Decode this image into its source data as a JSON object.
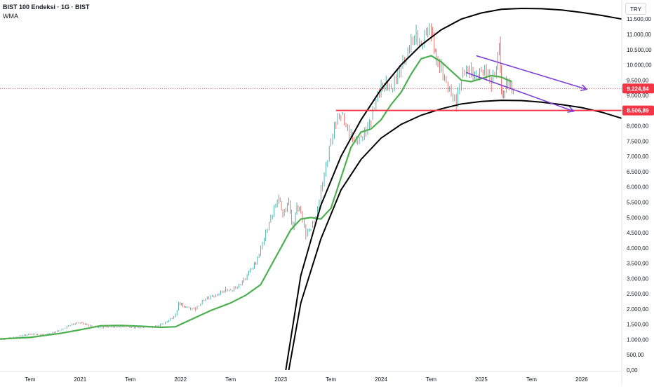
{
  "header": {
    "title": "BIST 100 Endeksi · 1G · BIST",
    "indicator": "WMA",
    "currency": "TRY"
  },
  "colors": {
    "price_up": "#26a69a",
    "price_down": "#ef5350",
    "wma": "#4caf50",
    "arc": "#000000",
    "support_line": "#f23645",
    "channel": "#7b3fd6",
    "last_price_label": "#f23645",
    "grid_label": "#131722"
  },
  "chart_data": {
    "type": "line",
    "title": "BIST 100 Endeksi · 1G · BIST",
    "xlabel": "",
    "ylabel": "",
    "x_ticks": [
      "Tem",
      "2021",
      "Tem",
      "2022",
      "Tem",
      "2023",
      "Tem",
      "2024",
      "Tem",
      "2025",
      "Tem",
      "2026"
    ],
    "x_tick_years": [
      2020.5,
      2021.0,
      2021.5,
      2022.0,
      2022.5,
      2023.0,
      2023.5,
      2024.0,
      2024.5,
      2025.0,
      2025.5,
      2026.0
    ],
    "y_ticks": [
      "11.500,00",
      "11.000,00",
      "10.500,00",
      "10.000,00",
      "9.500,00",
      "9.000,00",
      "8.000,00",
      "7.500,00",
      "7.000,00",
      "6.500,00",
      "6.000,00",
      "5.500,00",
      "5.000,00",
      "4.500,00",
      "4.000,00",
      "3.500,00",
      "3.000,00",
      "2.500,00",
      "2.000,00",
      "1.500,00",
      "1.000,00",
      "500,00",
      "0,00"
    ],
    "y_tick_values": [
      11500,
      11000,
      10500,
      10000,
      9500,
      9000,
      8000,
      7500,
      7000,
      6500,
      6000,
      5500,
      5000,
      4500,
      4000,
      3500,
      3000,
      2500,
      2000,
      1500,
      1000,
      500,
      0
    ],
    "ylim": [
      0,
      11850
    ],
    "xlim": [
      2020.2,
      2026.4
    ],
    "last_price_label": "9.224,84",
    "last_price_value": 9224.84,
    "support_label": "8.506,89",
    "support_value": 8506.89,
    "series": [
      {
        "role": "price",
        "x": [
          2020.2,
          2020.35,
          2020.5,
          2020.65,
          2020.8,
          2020.9,
          2021.0,
          2021.1,
          2021.2,
          2021.3,
          2021.45,
          2021.6,
          2021.75,
          2021.85,
          2021.95,
          2021.98,
          2022.05,
          2022.15,
          2022.25,
          2022.35,
          2022.45,
          2022.5,
          2022.6,
          2022.68,
          2022.75,
          2022.8,
          2022.85,
          2022.9,
          2022.95,
          2022.98,
          2023.02,
          2023.08,
          2023.12,
          2023.16,
          2023.2,
          2023.25,
          2023.3,
          2023.35,
          2023.4,
          2023.45,
          2023.5,
          2023.55,
          2023.6,
          2023.65,
          2023.7,
          2023.75,
          2023.8,
          2023.85,
          2023.9,
          2023.95,
          2024.0,
          2024.05,
          2024.1,
          2024.15,
          2024.2,
          2024.25,
          2024.3,
          2024.35,
          2024.4,
          2024.45,
          2024.5,
          2024.53,
          2024.55,
          2024.6,
          2024.65,
          2024.7,
          2024.75,
          2024.8,
          2024.85,
          2024.9,
          2024.95,
          2025.0,
          2025.05,
          2025.1,
          2025.15,
          2025.18,
          2025.2,
          2025.22,
          2025.25,
          2025.28,
          2025.32
        ],
        "values": [
          1000,
          1080,
          1180,
          1150,
          1300,
          1480,
          1560,
          1450,
          1400,
          1420,
          1420,
          1400,
          1420,
          1560,
          1800,
          2200,
          2050,
          2000,
          2350,
          2450,
          2650,
          2600,
          2800,
          3200,
          3500,
          4000,
          4500,
          5000,
          5400,
          5600,
          5100,
          5500,
          4600,
          5400,
          5150,
          4400,
          4700,
          5000,
          5900,
          6700,
          7500,
          8100,
          8400,
          8000,
          7700,
          7500,
          7600,
          7800,
          8200,
          8900,
          9300,
          9400,
          9200,
          9500,
          9900,
          10300,
          10800,
          11000,
          10600,
          11050,
          11100,
          10500,
          10200,
          9900,
          9400,
          9000,
          8700,
          9600,
          9900,
          9800,
          9600,
          9800,
          9700,
          9400,
          9950,
          10800,
          9200,
          9000,
          9400,
          9250,
          9224.84
        ]
      },
      {
        "role": "wma",
        "x": [
          2020.2,
          2020.5,
          2020.8,
          2021.0,
          2021.2,
          2021.4,
          2021.6,
          2021.8,
          2021.95,
          2022.1,
          2022.3,
          2022.5,
          2022.65,
          2022.8,
          2022.9,
          2023.0,
          2023.1,
          2023.2,
          2023.3,
          2023.4,
          2023.5,
          2023.6,
          2023.7,
          2023.8,
          2023.9,
          2024.0,
          2024.1,
          2024.2,
          2024.3,
          2024.4,
          2024.5,
          2024.6,
          2024.7,
          2024.8,
          2024.9,
          2025.0,
          2025.1,
          2025.2,
          2025.3
        ],
        "values": [
          1020,
          1070,
          1200,
          1320,
          1450,
          1460,
          1440,
          1400,
          1420,
          1650,
          1950,
          2200,
          2450,
          2800,
          3400,
          4000,
          4600,
          4950,
          5000,
          4950,
          5300,
          6300,
          7300,
          7800,
          7900,
          8200,
          8700,
          9100,
          9700,
          10200,
          10300,
          10100,
          9800,
          9500,
          9450,
          9550,
          9650,
          9600,
          9450
        ]
      }
    ],
    "annotations": [
      {
        "kind": "arc",
        "role": "upper",
        "x": [
          2023.05,
          2023.2,
          2023.4,
          2023.6,
          2023.8,
          2024.0,
          2024.2,
          2024.4,
          2024.6,
          2024.8,
          2025.0,
          2025.2,
          2025.4,
          2025.6,
          2025.8,
          2026.0,
          2026.2,
          2026.4
        ],
        "values": [
          0,
          3100,
          5400,
          7000,
          8200,
          9200,
          10000,
          10650,
          11150,
          11500,
          11700,
          11820,
          11850,
          11840,
          11800,
          11720,
          11620,
          11500
        ]
      },
      {
        "kind": "arc",
        "role": "lower",
        "x": [
          2023.08,
          2023.2,
          2023.4,
          2023.6,
          2023.8,
          2024.0,
          2024.2,
          2024.4,
          2024.6,
          2024.8,
          2025.0,
          2025.2,
          2025.4,
          2025.6,
          2025.8,
          2026.0,
          2026.2,
          2026.4
        ],
        "values": [
          0,
          2200,
          4300,
          5900,
          6900,
          7600,
          8050,
          8350,
          8560,
          8720,
          8800,
          8840,
          8830,
          8780,
          8700,
          8600,
          8450,
          8250
        ]
      },
      {
        "kind": "hline",
        "role": "support",
        "x": [
          2023.55,
          2026.4
        ],
        "values": [
          8506.89,
          8506.89
        ]
      },
      {
        "kind": "arrow",
        "role": "channel-top",
        "x": [
          2024.95,
          2026.05
        ],
        "values": [
          10300,
          9200
        ]
      },
      {
        "kind": "arrow",
        "role": "channel-bottom",
        "x": [
          2024.85,
          2025.92
        ],
        "values": [
          9750,
          8480
        ]
      }
    ],
    "grid": false,
    "legend": "none"
  }
}
